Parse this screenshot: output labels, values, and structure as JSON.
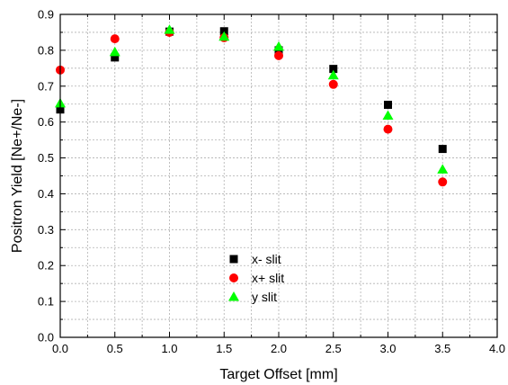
{
  "chart_data": {
    "type": "scatter",
    "xlabel": "Target Offset [mm]",
    "ylabel": "Positron Yield [Ne+/Ne-]",
    "xlim": [
      0.0,
      4.0
    ],
    "ylim": [
      0.0,
      0.9
    ],
    "x_ticks": [
      "0.0",
      "0.5",
      "1.0",
      "1.5",
      "2.0",
      "2.5",
      "3.0",
      "3.5",
      "4.0"
    ],
    "y_ticks": [
      "0.0",
      "0.1",
      "0.2",
      "0.3",
      "0.4",
      "0.5",
      "0.6",
      "0.7",
      "0.8",
      "0.9"
    ],
    "grid": true,
    "legend_position": "lower-center",
    "series": [
      {
        "name": "x- slit",
        "marker": "square",
        "color": "#000000",
        "x": [
          0.0,
          0.5,
          1.0,
          1.5,
          2.0,
          2.5,
          3.0,
          3.5
        ],
        "y": [
          0.635,
          0.78,
          0.852,
          0.853,
          0.8,
          0.748,
          0.648,
          0.525
        ]
      },
      {
        "name": "x+ slit",
        "marker": "circle",
        "color": "#ff0000",
        "x": [
          0.0,
          0.5,
          1.0,
          1.5,
          2.0,
          2.5,
          3.0,
          3.5
        ],
        "y": [
          0.745,
          0.832,
          0.85,
          0.835,
          0.785,
          0.705,
          0.58,
          0.433
        ]
      },
      {
        "name": "y slit",
        "marker": "triangle",
        "color": "#00ff00",
        "x": [
          0.0,
          0.5,
          1.0,
          1.5,
          2.0,
          2.5,
          3.0,
          3.5
        ],
        "y": [
          0.652,
          0.795,
          0.857,
          0.838,
          0.81,
          0.73,
          0.618,
          0.468
        ]
      }
    ]
  }
}
